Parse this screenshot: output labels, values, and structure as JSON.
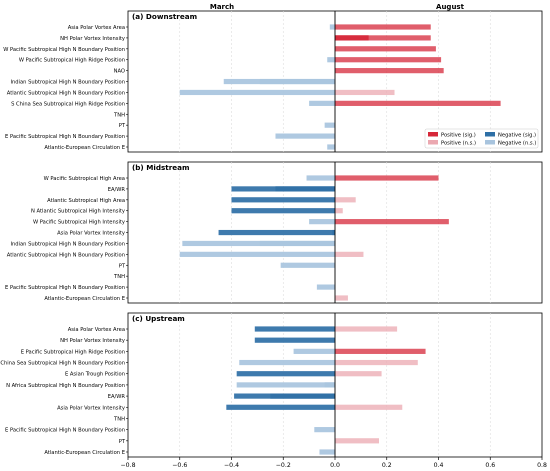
{
  "header": {
    "left": "March",
    "right": "August"
  },
  "legend": {
    "pos_sig": "Positive (sig.)",
    "pos_ns": "Positive (n.s.)",
    "neg_sig": "Negative (sig.)",
    "neg_ns": "Negative (n.s.)"
  },
  "colors": {
    "pos_sig": "#d62839",
    "pos_ns": "#eba8b0",
    "neg_sig": "#2e6fa6",
    "neg_ns": "#a8c4de",
    "grid": "#dddddd",
    "zero": "#000000"
  },
  "chart_data": {
    "type": "bar",
    "orientation": "horizontal",
    "xlim": [
      -0.8,
      0.8
    ],
    "xticks": [
      "−0.8",
      "−0.6",
      "−0.4",
      "−0.2",
      "0.0",
      "0.2",
      "0.4",
      "0.6",
      "0.8"
    ],
    "xtick_values": [
      -0.8,
      -0.6,
      -0.4,
      -0.2,
      0.0,
      0.2,
      0.4,
      0.6,
      0.8
    ],
    "grid": true,
    "legend_position": "lower-right of panel (a)",
    "panels": [
      {
        "title": "(a) Downstream",
        "categories": [
          "Asia Polar Vortex Area",
          "NH Polar Vortex Intensity",
          "W Pacific Subtropical High N Boundary Position",
          "W Pacific Subtropical High Ridge Position",
          "NAO",
          "Indian Subtropical High N Boundary Position",
          "Atlantic Subtropical High N Boundary Position",
          "S China Sea Subtropical High Ridge Position",
          "TNH",
          "PT",
          "E Pacific Subtropical High N Boundary Position",
          "Atlantic-European Circulation E"
        ],
        "march": [
          -0.02,
          0.13,
          0.0,
          -0.03,
          0.0,
          -0.43,
          -0.6,
          -0.1,
          0.0,
          -0.04,
          -0.23,
          -0.03
        ],
        "march_sig": [
          false,
          true,
          false,
          false,
          false,
          false,
          false,
          false,
          false,
          false,
          false,
          false
        ],
        "august": [
          0.37,
          0.37,
          0.39,
          0.41,
          0.42,
          -0.29,
          0.23,
          0.64,
          0.0,
          0.0,
          0.0,
          0.0
        ],
        "august_sig": [
          true,
          true,
          true,
          true,
          true,
          false,
          false,
          true,
          false,
          false,
          false,
          false
        ]
      },
      {
        "title": "(b) Midstream",
        "categories": [
          "W Pacific Subtropical High Area",
          "EA/WR",
          "Atlantic Subtropical High Area",
          "N Atlantic Subtropical High Intensity",
          "W Pacific Subtropical High Intensity",
          "Asia Polar Vortex Intensity",
          "Indian Subtropical High N Boundary Position",
          "Atlantic Subtropical High N Boundary Position",
          "PT",
          "TNH",
          "E Pacific Subtropical High N Boundary Position",
          "Atlantic-European Circulation E"
        ],
        "march": [
          -0.11,
          -0.4,
          -0.4,
          -0.4,
          -0.1,
          -0.45,
          -0.59,
          -0.6,
          -0.21,
          0.0,
          -0.07,
          0.0
        ],
        "march_sig": [
          false,
          true,
          true,
          true,
          false,
          true,
          false,
          false,
          false,
          false,
          false,
          false
        ],
        "august": [
          0.4,
          -0.23,
          0.08,
          0.03,
          0.44,
          -0.01,
          -0.29,
          0.11,
          0.0,
          0.0,
          0.0,
          0.05
        ],
        "august_sig": [
          true,
          true,
          false,
          false,
          true,
          true,
          false,
          false,
          false,
          false,
          false,
          false
        ]
      },
      {
        "title": "(c) Upstream",
        "categories": [
          "Asia Polar Vortex Area",
          "NH Polar Vortex Intensity",
          "E Pacific Subtropical High Ridge Position",
          "S China Sea Subtropical High N Boundary Position",
          "E Asian Trough Position",
          "N Africa Subtropical High N Boundary Position",
          "EA/WR",
          "Asia Polar Vortex Intensity",
          "TNH",
          "E Pacific Subtropical High N Boundary Position",
          "PT",
          "Atlantic-European Circulation E"
        ],
        "march": [
          -0.31,
          -0.31,
          -0.16,
          -0.37,
          -0.38,
          -0.38,
          -0.39,
          -0.42,
          0.0,
          -0.08,
          0.0,
          -0.06
        ],
        "march_sig": [
          true,
          true,
          false,
          false,
          true,
          false,
          true,
          true,
          false,
          false,
          false,
          false
        ],
        "august": [
          0.24,
          0.0,
          0.35,
          0.32,
          0.18,
          -0.04,
          -0.25,
          0.26,
          0.0,
          0.0,
          0.17,
          0.0
        ],
        "august_sig": [
          false,
          false,
          true,
          false,
          false,
          false,
          true,
          false,
          false,
          false,
          false,
          false
        ]
      }
    ]
  }
}
